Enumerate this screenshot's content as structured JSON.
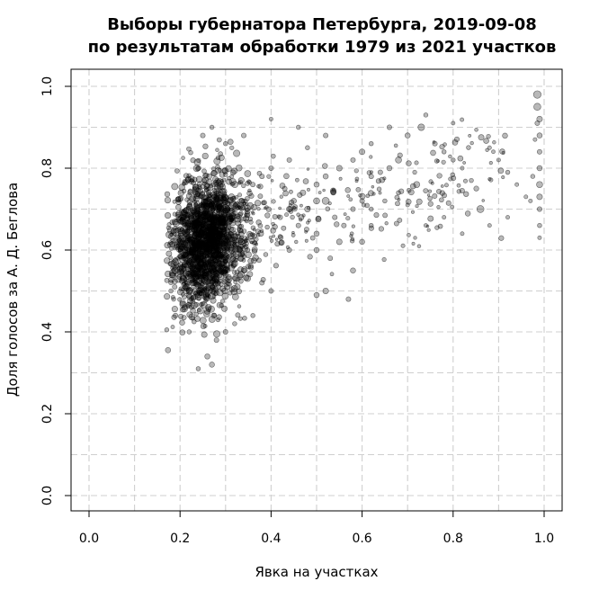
{
  "chart_data": {
    "type": "scatter",
    "title": "Выборы губернатора Петербурга, 2019-09-08",
    "subtitle": "по результатам обработки 1979 из 2021 участков",
    "xlabel": "Явка на участках",
    "ylabel": "Доля голосов за А. Д. Беглова",
    "xlim": [
      -0.04,
      1.04
    ],
    "ylim": [
      -0.04,
      1.04
    ],
    "x_ticks": [
      "0.0",
      "0.2",
      "0.4",
      "0.6",
      "0.8",
      "1.0"
    ],
    "y_ticks": [
      "0.0",
      "0.2",
      "0.4",
      "0.6",
      "0.8",
      "1.0"
    ],
    "grid": true,
    "point_color": "#000000",
    "cluster": {
      "x_center": 0.26,
      "y_center": 0.62,
      "x_spread": 0.04,
      "y_spread": 0.085,
      "count": 1700
    },
    "points": [
      [
        0.985,
        0.98,
        0.6
      ],
      [
        0.985,
        0.95,
        0.55
      ],
      [
        0.99,
        0.92,
        0.4
      ],
      [
        0.99,
        0.88,
        0.35
      ],
      [
        0.99,
        0.84,
        0.3
      ],
      [
        0.99,
        0.8,
        0.35
      ],
      [
        0.99,
        0.76,
        0.45
      ],
      [
        0.99,
        0.73,
        0.4
      ],
      [
        0.99,
        0.7,
        0.3
      ],
      [
        0.99,
        0.66,
        0.25
      ],
      [
        0.99,
        0.63,
        0.2
      ],
      [
        0.985,
        0.91,
        0.3
      ],
      [
        0.98,
        0.87,
        0.2
      ],
      [
        0.975,
        0.78,
        0.25
      ],
      [
        0.97,
        0.72,
        0.2
      ],
      [
        0.86,
        0.7,
        0.55
      ],
      [
        0.72,
        0.76,
        0.45
      ],
      [
        0.73,
        0.9,
        0.5
      ],
      [
        0.7,
        0.88,
        0.35
      ],
      [
        0.66,
        0.8,
        0.35
      ],
      [
        0.68,
        0.82,
        0.45
      ],
      [
        0.64,
        0.79,
        0.3
      ],
      [
        0.62,
        0.78,
        0.3
      ],
      [
        0.6,
        0.84,
        0.4
      ],
      [
        0.6,
        0.62,
        0.35
      ],
      [
        0.55,
        0.8,
        0.4
      ],
      [
        0.52,
        0.78,
        0.35
      ],
      [
        0.5,
        0.76,
        0.35
      ],
      [
        0.5,
        0.72,
        0.45
      ],
      [
        0.48,
        0.7,
        0.4
      ],
      [
        0.47,
        0.74,
        0.4
      ],
      [
        0.45,
        0.72,
        0.35
      ],
      [
        0.44,
        0.7,
        0.4
      ],
      [
        0.43,
        0.75,
        0.3
      ],
      [
        0.42,
        0.68,
        0.3
      ],
      [
        0.55,
        0.62,
        0.4
      ],
      [
        0.5,
        0.6,
        0.35
      ],
      [
        0.53,
        0.58,
        0.3
      ],
      [
        0.52,
        0.5,
        0.4
      ],
      [
        0.5,
        0.49,
        0.35
      ],
      [
        0.58,
        0.55,
        0.35
      ],
      [
        0.57,
        0.48,
        0.3
      ],
      [
        0.6,
        0.72,
        0.3
      ],
      [
        0.62,
        0.7,
        0.25
      ],
      [
        0.58,
        0.7,
        0.3
      ],
      [
        0.56,
        0.66,
        0.3
      ],
      [
        0.54,
        0.68,
        0.3
      ],
      [
        0.65,
        0.72,
        0.25
      ],
      [
        0.68,
        0.74,
        0.25
      ],
      [
        0.7,
        0.71,
        0.2
      ],
      [
        0.76,
        0.86,
        0.3
      ],
      [
        0.78,
        0.84,
        0.25
      ],
      [
        0.8,
        0.82,
        0.25
      ],
      [
        0.82,
        0.8,
        0.2
      ],
      [
        0.84,
        0.77,
        0.25
      ],
      [
        0.88,
        0.85,
        0.2
      ],
      [
        0.9,
        0.82,
        0.2
      ],
      [
        0.92,
        0.79,
        0.25
      ],
      [
        0.94,
        0.76,
        0.2
      ],
      [
        0.96,
        0.73,
        0.2
      ],
      [
        0.74,
        0.66,
        0.2
      ],
      [
        0.78,
        0.68,
        0.2
      ],
      [
        0.82,
        0.64,
        0.2
      ],
      [
        0.88,
        0.66,
        0.2
      ],
      [
        0.92,
        0.68,
        0.2
      ],
      [
        0.66,
        0.9,
        0.3
      ],
      [
        0.74,
        0.93,
        0.25
      ],
      [
        0.8,
        0.91,
        0.2
      ],
      [
        0.62,
        0.86,
        0.25
      ],
      [
        0.58,
        0.82,
        0.3
      ],
      [
        0.46,
        0.9,
        0.25
      ],
      [
        0.52,
        0.88,
        0.3
      ],
      [
        0.48,
        0.85,
        0.25
      ],
      [
        0.44,
        0.82,
        0.3
      ],
      [
        0.4,
        0.8,
        0.3
      ],
      [
        0.38,
        0.78,
        0.3
      ],
      [
        0.36,
        0.76,
        0.3
      ],
      [
        0.35,
        0.56,
        0.3
      ],
      [
        0.38,
        0.52,
        0.3
      ],
      [
        0.4,
        0.5,
        0.3
      ],
      [
        0.36,
        0.44,
        0.25
      ],
      [
        0.32,
        0.42,
        0.25
      ],
      [
        0.3,
        0.4,
        0.3
      ],
      [
        0.28,
        0.38,
        0.3
      ],
      [
        0.26,
        0.34,
        0.35
      ],
      [
        0.27,
        0.32,
        0.35
      ],
      [
        0.24,
        0.31,
        0.25
      ],
      [
        0.22,
        0.4,
        0.25
      ],
      [
        0.19,
        0.44,
        0.3
      ],
      [
        0.18,
        0.5,
        0.25
      ],
      [
        0.27,
        0.9,
        0.25
      ],
      [
        0.25,
        0.88,
        0.3
      ],
      [
        0.3,
        0.86,
        0.25
      ],
      [
        0.34,
        0.88,
        0.3
      ],
      [
        0.4,
        0.92,
        0.2
      ],
      [
        0.52,
        0.72,
        0.55
      ],
      [
        0.5,
        0.64,
        0.35
      ],
      [
        0.62,
        0.66,
        0.25
      ],
      [
        0.46,
        0.66,
        0.3
      ],
      [
        0.44,
        0.6,
        0.3
      ]
    ]
  }
}
